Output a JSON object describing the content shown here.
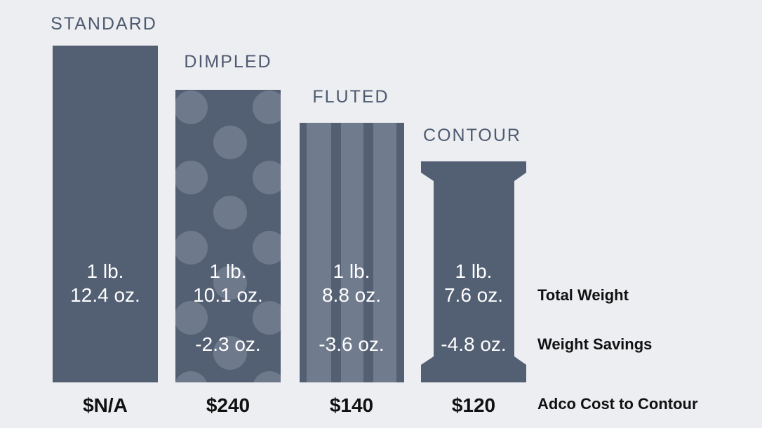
{
  "columns": [
    {
      "name": "STANDARD",
      "weight": [
        "1 lb.",
        "12.4 oz."
      ],
      "cost": "$N/A"
    },
    {
      "name": "DIMPLED",
      "weight": [
        "1 lb.",
        "10.1 oz."
      ],
      "savings": "-2.3 oz.",
      "cost": "$240"
    },
    {
      "name": "FLUTED",
      "weight": [
        "1 lb.",
        "8.8 oz."
      ],
      "savings": "-3.6 oz.",
      "cost": "$140"
    },
    {
      "name": "CONTOUR",
      "weight": [
        "1 lb.",
        "7.6 oz."
      ],
      "savings": "-4.8 oz.",
      "cost": "$120"
    }
  ],
  "row_labels": {
    "weight": "Total Weight",
    "savings": "Weight Savings",
    "cost": "Adco Cost to Contour"
  }
}
